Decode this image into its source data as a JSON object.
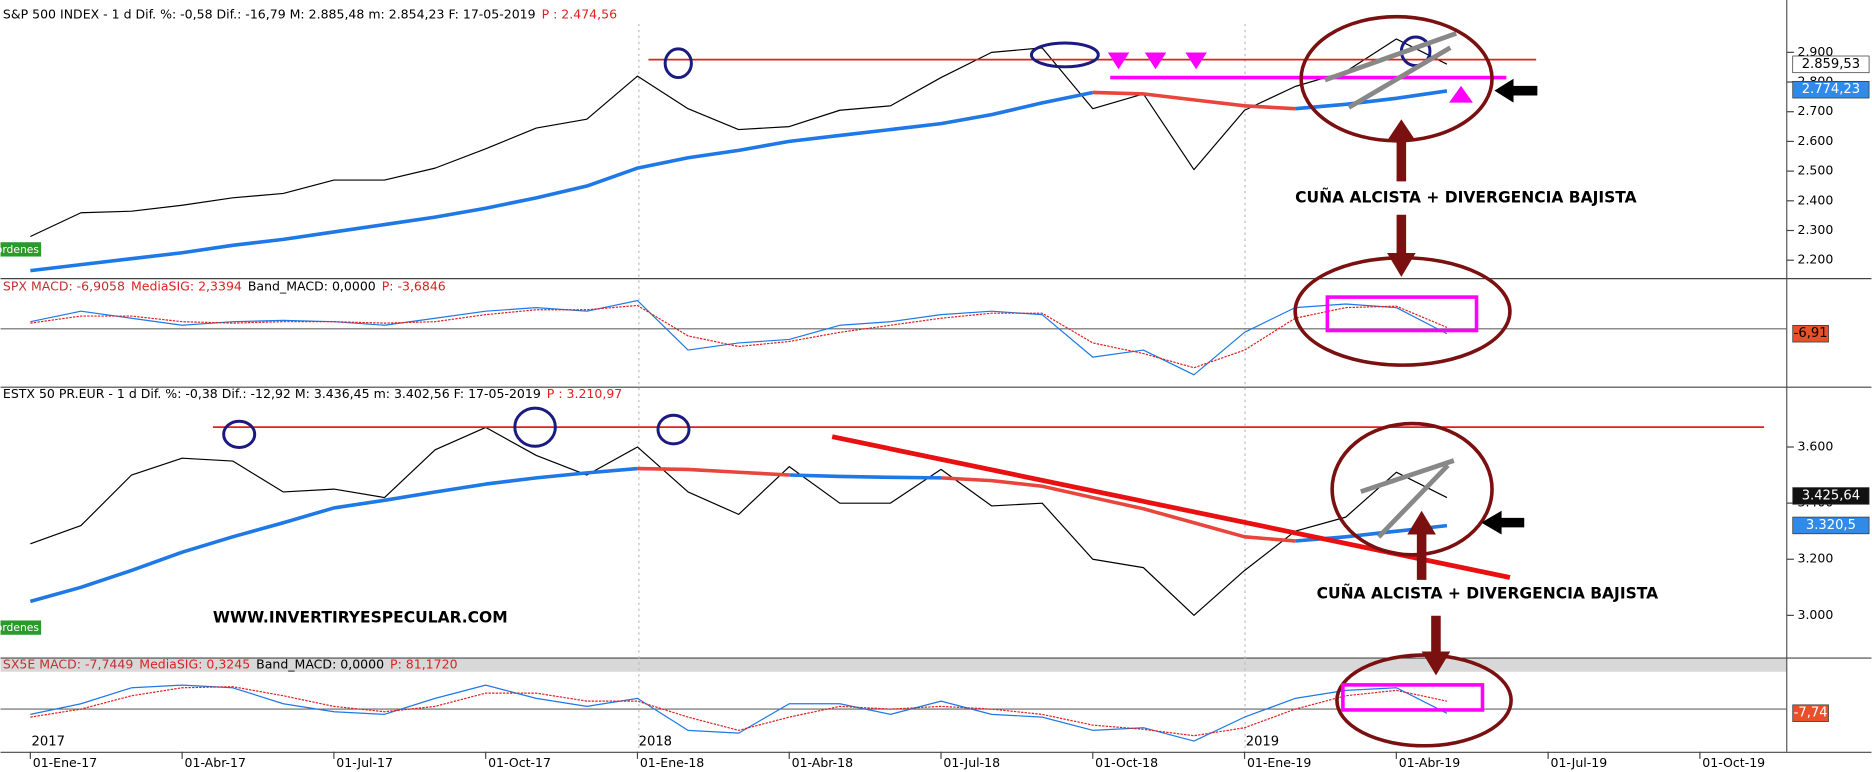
{
  "x_axis": {
    "categories": [
      "01-Ene-17",
      null,
      null,
      "01-Abr-17",
      null,
      null,
      "01-Jul-17",
      null,
      null,
      "01-Oct-17",
      null,
      null,
      "01-Ene-18",
      null,
      null,
      "01-Abr-18",
      null,
      null,
      "01-Jul-18",
      null,
      null,
      "01-Oct-18",
      null,
      null,
      "01-Ene-19",
      null,
      null,
      "01-Abr-19",
      null,
      null,
      "01-Jul-19",
      null,
      null,
      "01-Oct-19"
    ],
    "year_labels": [
      "2017",
      null,
      null,
      null,
      null,
      null,
      null,
      null,
      null,
      null,
      null,
      null,
      "2018",
      null,
      null,
      null,
      null,
      null,
      null,
      null,
      null,
      null,
      null,
      null,
      "2019",
      null,
      null,
      null,
      null,
      null,
      null,
      null,
      null,
      null
    ]
  },
  "chart_data": [
    {
      "type": "line",
      "title_parts": [
        {
          "text": "S&P 500 INDEX -  1 d Dif. %: -0,58 Dif.: -16,79 M: 2.885,48 m: 2.854,23 F: 17-05-2019",
          "color": "#000000"
        },
        {
          "text": "P : 2.474,56",
          "color": "#e02020"
        }
      ],
      "ylim": [
        2140,
        3020
      ],
      "yticks": [
        {
          "value": 2200,
          "label": "2.200"
        },
        {
          "value": 2300,
          "label": "2.300"
        },
        {
          "value": 2400,
          "label": "2.400"
        },
        {
          "value": 2500,
          "label": "2.500"
        },
        {
          "value": 2600,
          "label": "2.600"
        },
        {
          "value": 2700,
          "label": "2.700"
        },
        {
          "value": 2800,
          "label": "2.800"
        },
        {
          "value": 2900,
          "label": "2.900"
        }
      ],
      "series": [
        {
          "color": "#000000",
          "values": [
            2280,
            2360,
            2365,
            2385,
            2410,
            2425,
            2470,
            2470,
            2510,
            2575,
            2645,
            2675,
            2820,
            2710,
            2640,
            2650,
            2705,
            2720,
            2815,
            2900,
            2915,
            2710,
            2760,
            2505,
            2705,
            2785,
            2835,
            2945,
            2860,
            null,
            null,
            null,
            null,
            null
          ],
          "last_label": {
            "value": 2859.53,
            "label": "2.859,53"
          },
          "label_bg": "#ffffff",
          "label_fg": "#000000"
        },
        {
          "color": "#1e78e6",
          "values": [
            2165,
            2185,
            2205,
            2225,
            2250,
            2270,
            2295,
            2320,
            2345,
            2375,
            2410,
            2450,
            2510,
            2545,
            2570,
            2600,
            2620,
            2640,
            2660,
            2690,
            2730,
            2765,
            null,
            null,
            null,
            2710,
            2725,
            2745,
            2770,
            null,
            null,
            null,
            null,
            null
          ],
          "last_label": {
            "value": 2774.23,
            "label": "2.774,23"
          },
          "label_bg": "#2f8ae8",
          "label_fg": "#ffffff"
        },
        {
          "color": "#e8453c",
          "values": [
            null,
            null,
            null,
            null,
            null,
            null,
            null,
            null,
            null,
            null,
            null,
            null,
            null,
            null,
            null,
            null,
            null,
            null,
            null,
            null,
            null,
            2765,
            2760,
            2740,
            2720,
            2710,
            null,
            null,
            null,
            null,
            null,
            null,
            null,
            null
          ]
        }
      ],
      "annotation": "CUÑA ALCISTA + DIVERGENCIA BAJISTA",
      "orders_tag": "ordenes"
    },
    {
      "type": "line",
      "title_parts": [
        {
          "text": "SPX MACD: -6,9058",
          "color": "#c03030"
        },
        {
          "text": "MediaSIG: 2,3394",
          "color": "#e02020"
        },
        {
          "text": "Band_MACD: 0,0000",
          "color": "#000000"
        },
        {
          "text": "P: -3,6846",
          "color": "#e02020"
        }
      ],
      "ylim": [
        -80,
        60
      ],
      "series": [
        {
          "color": "#1e78e6",
          "values": [
            10,
            25,
            15,
            5,
            10,
            12,
            10,
            5,
            15,
            25,
            30,
            25,
            40,
            -30,
            -20,
            -15,
            5,
            10,
            20,
            25,
            20,
            -40,
            -30,
            -65,
            -5,
            30,
            35,
            30,
            -7,
            null,
            null,
            null,
            null,
            null
          ],
          "last_label": {
            "value": -6.91,
            "label": "-6,91"
          },
          "label_bg": "#e8502a",
          "label_fg": "#000000"
        },
        {
          "color": "#e02020",
          "values": [
            8,
            18,
            18,
            10,
            8,
            10,
            10,
            8,
            10,
            20,
            27,
            27,
            33,
            -10,
            -25,
            -18,
            -5,
            5,
            15,
            22,
            22,
            -20,
            -35,
            -55,
            -30,
            15,
            30,
            32,
            2,
            null,
            null,
            null,
            null,
            null
          ]
        }
      ]
    },
    {
      "type": "line",
      "title_parts": [
        {
          "text": "ESTX 50 PR.EUR -  1 d Dif. %: -0,38 Dif.: -12,92 M: 3.436,45 m: 3.402,56 F: 17-05-2019",
          "color": "#000000"
        },
        {
          "text": "P : 3.210,97",
          "color": "#e02020"
        }
      ],
      "ylim": [
        2850,
        3760
      ],
      "yticks": [
        {
          "value": 3000,
          "label": "3.000"
        },
        {
          "value": 3200,
          "label": "3.200"
        },
        {
          "value": 3400,
          "label": "3.400"
        },
        {
          "value": 3600,
          "label": "3.600"
        }
      ],
      "series": [
        {
          "color": "#000000",
          "values": [
            3255,
            3320,
            3500,
            3560,
            3550,
            3440,
            3450,
            3420,
            3590,
            3670,
            3570,
            3500,
            3600,
            3440,
            3360,
            3530,
            3400,
            3400,
            3520,
            3390,
            3400,
            3200,
            3170,
            3000,
            3160,
            3300,
            3350,
            3510,
            3420,
            null,
            null,
            null,
            null,
            null
          ],
          "last_label": {
            "value": 3425.64,
            "label": "3.425,64"
          },
          "label_bg": "#111111",
          "label_fg": "#ffffff"
        },
        {
          "color": "#1e78e6",
          "values": [
            3050,
            3100,
            3160,
            3225,
            3280,
            3330,
            3383,
            3410,
            3440,
            3468,
            3490,
            3508,
            3523,
            null,
            null,
            3500,
            3495,
            3492,
            3490,
            null,
            null,
            null,
            null,
            null,
            null,
            3265,
            3280,
            3300,
            3320,
            null,
            null,
            null,
            null,
            null
          ],
          "last_label": {
            "value": 3320.5,
            "label": "3.320,5"
          },
          "label_bg": "#2f8ae8",
          "label_fg": "#ffffff"
        },
        {
          "color": "#e8453c",
          "values": [
            null,
            null,
            null,
            null,
            null,
            null,
            null,
            null,
            null,
            null,
            null,
            null,
            3523,
            3520,
            3510,
            3500,
            null,
            null,
            3490,
            3480,
            3460,
            3420,
            3380,
            3330,
            3280,
            3265,
            null,
            null,
            null,
            null,
            null,
            null,
            null,
            null
          ]
        }
      ],
      "annotation": "CUÑA ALCISTA + DIVERGENCIA BAJISTA",
      "watermark": "WWW.INVERTIRYESPECULAR.COM",
      "orders_tag": "ordenes"
    },
    {
      "type": "line",
      "title_parts": [
        {
          "text": "SX5E MACD: -7,7449",
          "color": "#c03030"
        },
        {
          "text": "MediaSIG: 0,3245",
          "color": "#e02020"
        },
        {
          "text": "Band_MACD: 0,0000",
          "color": "#000000"
        },
        {
          "text": "P: 81,1720",
          "color": "#e02020"
        }
      ],
      "ylim": [
        -80,
        70
      ],
      "series": [
        {
          "color": "#1e78e6",
          "values": [
            -10,
            10,
            40,
            45,
            40,
            10,
            -5,
            -10,
            20,
            45,
            20,
            5,
            20,
            -40,
            -45,
            10,
            10,
            -10,
            15,
            -10,
            -15,
            -40,
            -35,
            -60,
            -15,
            20,
            35,
            40,
            -8,
            null,
            null,
            null,
            null,
            null
          ],
          "last_label": {
            "value": -7.74,
            "label": "-7,74"
          },
          "label_bg": "#e8502a",
          "label_fg": "#ffffff"
        },
        {
          "color": "#e02020",
          "values": [
            -15,
            0,
            25,
            40,
            42,
            25,
            5,
            -5,
            5,
            30,
            30,
            15,
            15,
            -15,
            -40,
            -15,
            5,
            0,
            5,
            0,
            -10,
            -30,
            -38,
            -50,
            -35,
            0,
            25,
            35,
            15,
            null,
            null,
            null,
            null,
            null
          ]
        }
      ]
    }
  ]
}
